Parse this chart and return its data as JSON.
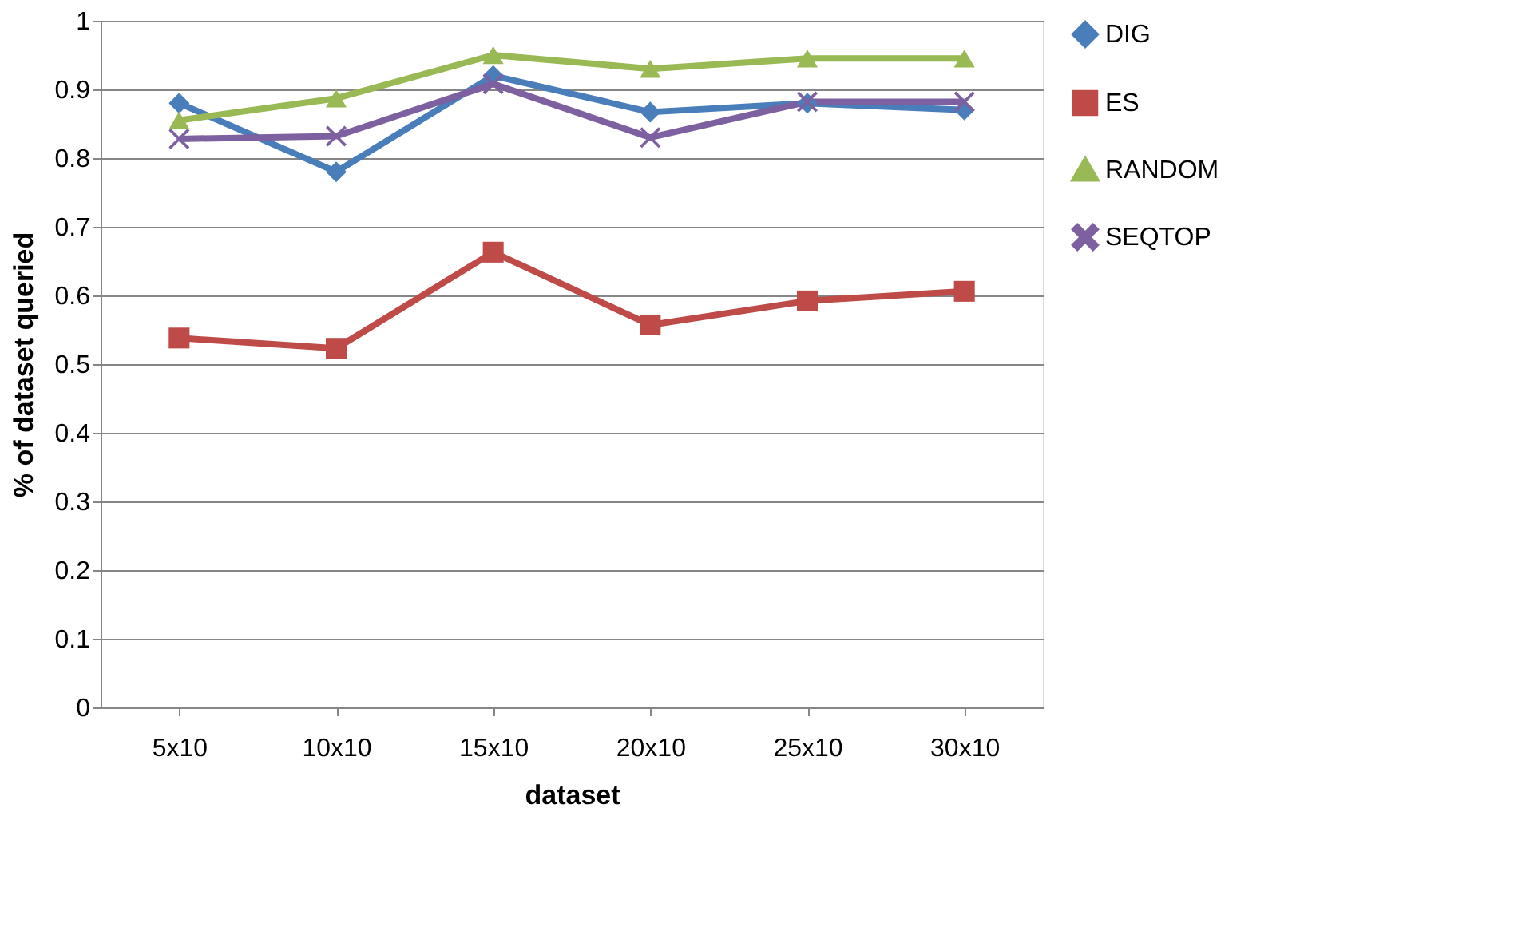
{
  "chart_data": {
    "type": "line",
    "xlabel": "dataset",
    "ylabel": "% of dataset queried",
    "categories": [
      "5x10",
      "10x10",
      "15x10",
      "20x10",
      "25x10",
      "30x10"
    ],
    "series": [
      {
        "name": "DIG",
        "color": "#4a7ebb",
        "marker": "diamond",
        "values": [
          0.88,
          0.78,
          0.92,
          0.867,
          0.88,
          0.87
        ]
      },
      {
        "name": "ES",
        "color": "#be4b48",
        "marker": "square",
        "values": [
          0.538,
          0.523,
          0.663,
          0.557,
          0.592,
          0.606
        ]
      },
      {
        "name": "RANDOM",
        "color": "#98b954",
        "marker": "triangle",
        "values": [
          0.855,
          0.887,
          0.95,
          0.93,
          0.945,
          0.945
        ]
      },
      {
        "name": "SEQTOP",
        "color": "#7d60a0",
        "marker": "cross",
        "values": [
          0.828,
          0.832,
          0.908,
          0.83,
          0.882,
          0.882
        ]
      }
    ],
    "ylim": [
      0,
      1
    ],
    "yticks": [
      0,
      0.1,
      0.2,
      0.3,
      0.4,
      0.5,
      0.6,
      0.7,
      0.8,
      0.9,
      1
    ],
    "grid": "y",
    "legend": "right",
    "line_style": "solid"
  }
}
